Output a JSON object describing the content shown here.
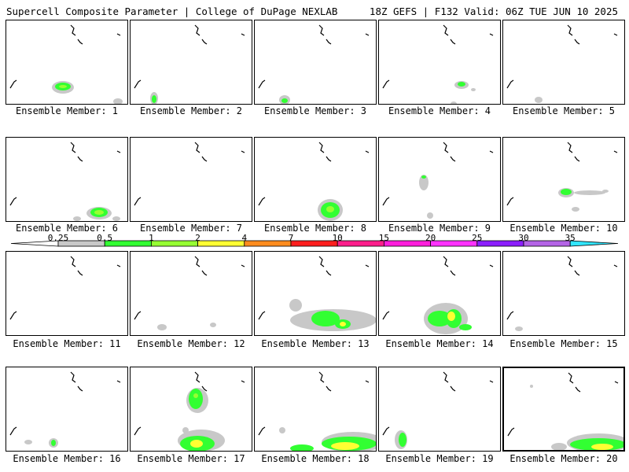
{
  "header": {
    "left_title": "Supercell Composite Parameter | College of DuPage NEXLAB",
    "right_title": "18Z GEFS | F132 Valid: 06Z TUE JUN 10 2025"
  },
  "colorbar": {
    "levels": [
      "0.25",
      "0.5",
      "1",
      "2",
      "4",
      "7",
      "10",
      "15",
      "20",
      "25",
      "30",
      "35"
    ],
    "colors": [
      "#c8c8c8",
      "#32ff32",
      "#96ff32",
      "#ffff32",
      "#ff8c1e",
      "#ff1e1e",
      "#ff1e8c",
      "#ff1edc",
      "#ff32ff",
      "#8c1eff",
      "#b464e6",
      "#32e6ff"
    ]
  },
  "panels": [
    {
      "label": "Ensemble Member: 1"
    },
    {
      "label": "Ensemble Member: 2"
    },
    {
      "label": "Ensemble Member: 3"
    },
    {
      "label": "Ensemble Member: 4"
    },
    {
      "label": "Ensemble Member: 5"
    },
    {
      "label": "Ensemble Member: 6"
    },
    {
      "label": "Ensemble Member: 7"
    },
    {
      "label": "Ensemble Member: 8"
    },
    {
      "label": "Ensemble Member: 9"
    },
    {
      "label": "Ensemble Member: 10"
    },
    {
      "label": "Ensemble Member: 11"
    },
    {
      "label": "Ensemble Member: 12"
    },
    {
      "label": "Ensemble Member: 13"
    },
    {
      "label": "Ensemble Member: 14"
    },
    {
      "label": "Ensemble Member: 15"
    },
    {
      "label": "Ensemble Member: 16"
    },
    {
      "label": "Ensemble Member: 17"
    },
    {
      "label": "Ensemble Member: 18"
    },
    {
      "label": "Ensemble Member: 19"
    },
    {
      "label": "Ensemble Member: 20"
    }
  ]
}
